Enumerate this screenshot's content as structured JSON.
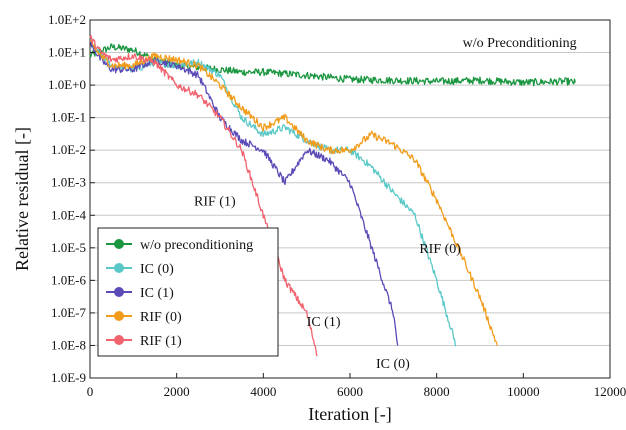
{
  "chart_data": {
    "type": "line",
    "xlabel": "Iteration [-]",
    "ylabel": "Relative residual [-]",
    "xlim": [
      0,
      12000
    ],
    "ylim_log10": [
      -9,
      2
    ],
    "y_scale": "log",
    "x_ticks": [
      0,
      2000,
      4000,
      6000,
      8000,
      10000,
      12000
    ],
    "x_tick_labels": [
      "0",
      "2000",
      "4000",
      "6000",
      "8000",
      "10000",
      "12000"
    ],
    "y_ticks_log10": [
      2,
      1,
      0,
      -1,
      -2,
      -3,
      -4,
      -5,
      -6,
      -7,
      -8,
      -9
    ],
    "y_tick_labels": [
      "1.0E+2",
      "1.0E+1",
      "1.0E+0",
      "1.0E-1",
      "1.0E-2",
      "1.0E-3",
      "1.0E-4",
      "1.0E-5",
      "1.0E-6",
      "1.0E-7",
      "1.0E-8",
      "1.0E-9"
    ],
    "grid": "horizontal",
    "legend_position": "bottom-left",
    "series": [
      {
        "name": "w/o preconditioning",
        "color": "#1a9641",
        "x": [
          0,
          500,
          1000,
          1500,
          2000,
          2500,
          3000,
          3500,
          4000,
          5000,
          6000,
          7000,
          8000,
          9000,
          10000,
          11000,
          11200
        ],
        "y": [
          8,
          15,
          12,
          6,
          4,
          3.5,
          3,
          2.5,
          2.5,
          2,
          1.5,
          1.4,
          1.3,
          1.4,
          1.2,
          1.3,
          1.2
        ]
      },
      {
        "name": "IC (0)",
        "color": "#5bc8c8",
        "x": [
          0,
          250,
          500,
          1000,
          1500,
          2000,
          2500,
          3000,
          3500,
          4000,
          4500,
          5000,
          5500,
          6000,
          6300,
          6500,
          7000,
          7500,
          8000,
          8450
        ],
        "y": [
          20,
          8,
          4,
          3,
          5,
          4,
          5,
          2,
          0.1,
          0.03,
          0.05,
          0.02,
          0.01,
          0.01,
          0.005,
          0.003,
          0.0005,
          0.0001,
          1e-06,
          1e-08
        ]
      },
      {
        "name": "IC (1)",
        "color": "#5b4bb7",
        "x": [
          0,
          250,
          500,
          1000,
          1500,
          2000,
          2500,
          3000,
          3500,
          4000,
          4500,
          5000,
          5500,
          6000,
          6500,
          7000,
          7100
        ],
        "y": [
          20,
          6,
          3,
          3,
          6,
          4,
          2,
          0.1,
          0.02,
          0.01,
          0.001,
          0.01,
          0.005,
          0.001,
          1e-05,
          1e-07,
          1e-08
        ]
      },
      {
        "name": "RIF (0)",
        "color": "#f29c1c",
        "x": [
          0,
          250,
          500,
          1000,
          1500,
          2000,
          2500,
          3000,
          3500,
          4000,
          4500,
          5000,
          5500,
          6000,
          6500,
          7000,
          7500,
          8000,
          8500,
          9000,
          9400
        ],
        "y": [
          20,
          8,
          4,
          4,
          8,
          6,
          4,
          1,
          0.2,
          0.05,
          0.1,
          0.02,
          0.01,
          0.01,
          0.03,
          0.015,
          0.005,
          0.0003,
          1e-05,
          3e-07,
          1e-08
        ]
      },
      {
        "name": "RIF (1)",
        "color": "#f0626e",
        "x": [
          0,
          250,
          500,
          1000,
          1500,
          2000,
          2500,
          3000,
          3500,
          4000,
          4500,
          5000,
          5250
        ],
        "y": [
          30,
          10,
          6,
          8,
          5,
          1,
          0.5,
          0.1,
          0.01,
          0.0001,
          1e-06,
          1e-07,
          5e-09
        ]
      }
    ],
    "annotations": [
      {
        "text": "w/o Preconditioning",
        "x": 8600,
        "y": 15
      },
      {
        "text": "RIF (1)",
        "x": 2400,
        "y": 0.0002
      },
      {
        "text": "RIF (0)",
        "x": 7600,
        "y": 7e-06
      },
      {
        "text": "IC (1)",
        "x": 5000,
        "y": 4e-08
      },
      {
        "text": "IC (0)",
        "x": 6600,
        "y": 2e-09
      }
    ]
  }
}
